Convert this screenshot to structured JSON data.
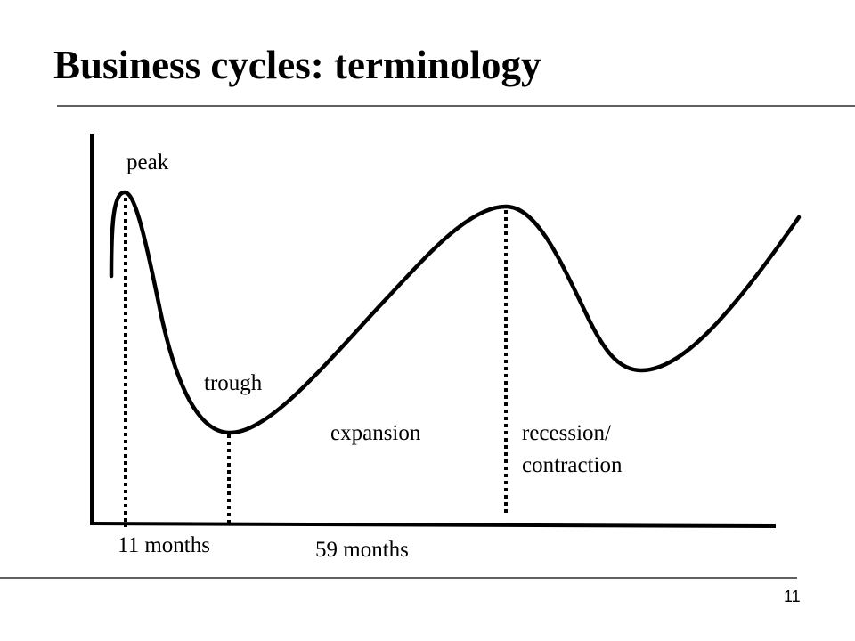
{
  "slide": {
    "title": "Business cycles:  terminology",
    "page_number": "11"
  },
  "diagram": {
    "labels": {
      "peak": "peak",
      "trough": "trough",
      "expansion": "expansion",
      "recession_line1": "recession/",
      "recession_line2": "contraction"
    },
    "durations": {
      "contraction_span": "11 months",
      "expansion_span": "59 months"
    },
    "colors": {
      "ink": "#000000",
      "background": "#ffffff"
    }
  }
}
